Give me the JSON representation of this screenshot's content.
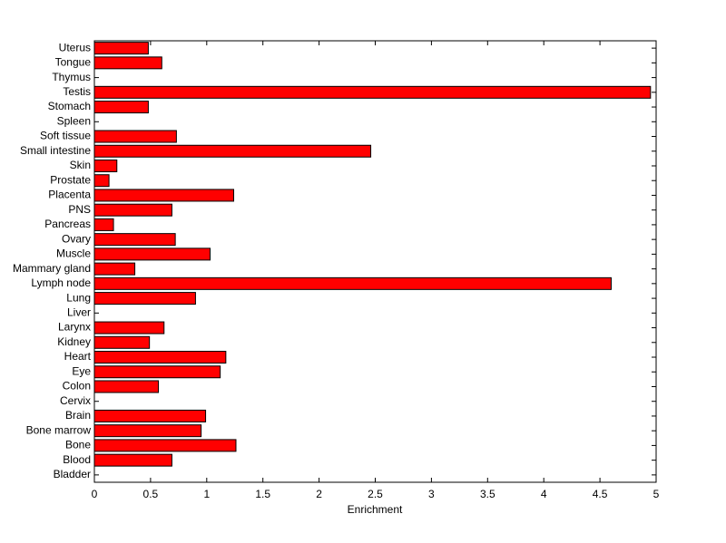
{
  "chart_data": {
    "type": "barh",
    "x_label": "Enrichment",
    "categories": [
      "Bladder",
      "Blood",
      "Bone",
      "Bone marrow",
      "Brain",
      "Cervix",
      "Colon",
      "Eye",
      "Heart",
      "Kidney",
      "Larynx",
      "Liver",
      "Lung",
      "Lymph node",
      "Mammary gland",
      "Muscle",
      "Ovary",
      "Pancreas",
      "PNS",
      "Placenta",
      "Prostate",
      "Skin",
      "Small intestine",
      "Soft tissue",
      "Spleen",
      "Stomach",
      "Testis",
      "Thymus",
      "Tongue",
      "Uterus"
    ],
    "values": [
      0,
      0.69,
      1.26,
      0.95,
      0.99,
      0,
      0.57,
      1.12,
      1.17,
      0.49,
      0.62,
      0,
      0.9,
      4.6,
      0.36,
      1.03,
      0.72,
      0.17,
      0.69,
      1.24,
      0.13,
      0.2,
      2.46,
      0.73,
      0,
      0.48,
      4.95,
      0,
      0.6,
      0.48
    ],
    "color": "#ff0000",
    "xlim": [
      0,
      5
    ],
    "xticks": [
      0,
      0.5,
      1,
      1.5,
      2,
      2.5,
      3,
      3.5,
      4,
      4.5,
      5
    ]
  }
}
